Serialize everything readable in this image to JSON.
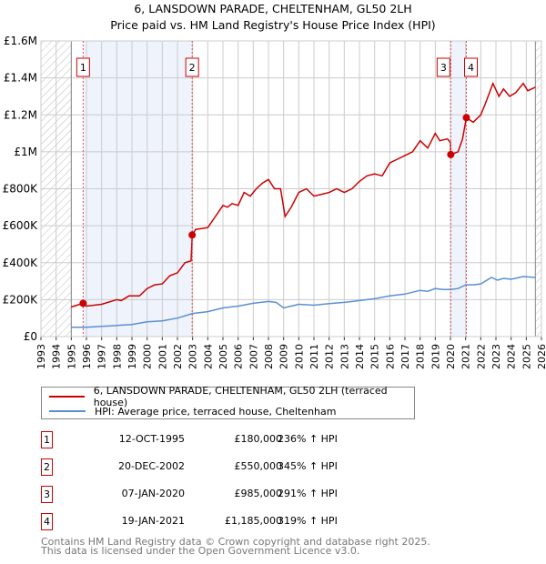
{
  "title": "6, LANSDOWN PARADE, CHELTENHAM, GL50 2LH",
  "subtitle": "Price paid vs. HM Land Registry's House Price Index (HPI)",
  "legend": {
    "property": "6, LANSDOWN PARADE, CHELTENHAM, GL50 2LH (terraced house)",
    "hpi": "HPI: Average price, terraced house, Cheltenham"
  },
  "transactions": [
    {
      "num": "1",
      "date": "12-OCT-1995",
      "price": "£180,000",
      "pct": "236% ↑ HPI"
    },
    {
      "num": "2",
      "date": "20-DEC-2002",
      "price": "£550,000",
      "pct": "345% ↑ HPI"
    },
    {
      "num": "3",
      "date": "07-JAN-2020",
      "price": "£985,000",
      "pct": "291% ↑ HPI"
    },
    {
      "num": "4",
      "date": "19-JAN-2021",
      "price": "£1,185,000",
      "pct": "319% ↑ HPI"
    }
  ],
  "footer": {
    "line1": "Contains HM Land Registry data © Crown copyright and database right 2025.",
    "line2": "This data is licensed under the Open Government Licence v3.0."
  },
  "colors": {
    "property": "#cc0000",
    "hpi": "#5b8fd4",
    "shade": "#eef3fc",
    "grid": "#cccccc"
  },
  "chart_data": {
    "type": "line",
    "xlim": [
      1993,
      2026
    ],
    "ylim": [
      0,
      1600000
    ],
    "yticks": [
      0,
      200000,
      400000,
      600000,
      800000,
      1000000,
      1200000,
      1400000,
      1600000
    ],
    "ytick_labels": [
      "£0",
      "£200K",
      "£400K",
      "£600K",
      "£800K",
      "£1M",
      "£1.2M",
      "£1.4M",
      "£1.6M"
    ],
    "xticks": [
      "1993",
      "1994",
      "1995",
      "1996",
      "1997",
      "1998",
      "1999",
      "2000",
      "2001",
      "2002",
      "2003",
      "2004",
      "2005",
      "2006",
      "2007",
      "2008",
      "2009",
      "2010",
      "2011",
      "2012",
      "2013",
      "2014",
      "2015",
      "2016",
      "2017",
      "2018",
      "2019",
      "2020",
      "2021",
      "2022",
      "2023",
      "2024",
      "2025",
      "2026"
    ],
    "hatched": [
      [
        1993,
        1995
      ],
      [
        2025.6,
        2026
      ]
    ],
    "shaded": [
      [
        1995.78,
        2002.97
      ],
      [
        2020.02,
        2021.05
      ]
    ],
    "sales": [
      {
        "label": "1",
        "x": 1995.78,
        "y": 180000
      },
      {
        "label": "2",
        "x": 2002.97,
        "y": 550000
      },
      {
        "label": "3",
        "x": 2020.02,
        "y": 985000
      },
      {
        "label": "4",
        "x": 2021.05,
        "y": 1185000
      }
    ],
    "series": [
      {
        "name": "property",
        "x": [
          1995.0,
          1995.78,
          1996.0,
          1997.0,
          1998.0,
          1998.3,
          1998.8,
          1999.5,
          2000.0,
          2000.5,
          2001.0,
          2001.5,
          2002.0,
          2002.5,
          2002.9,
          2002.97,
          2003.2,
          2004.0,
          2004.5,
          2005.0,
          2005.3,
          2005.6,
          2006.0,
          2006.4,
          2006.8,
          2007.2,
          2007.6,
          2008.0,
          2008.4,
          2008.8,
          2009.1,
          2009.5,
          2010.0,
          2010.5,
          2011.0,
          2011.5,
          2012.0,
          2012.5,
          2013.0,
          2013.5,
          2014.0,
          2014.5,
          2015.0,
          2015.5,
          2016.0,
          2016.5,
          2017.0,
          2017.5,
          2018.0,
          2018.5,
          2019.0,
          2019.3,
          2019.8,
          2020.0,
          2020.02,
          2020.5,
          2020.8,
          2021.05,
          2021.5,
          2022.0,
          2022.3,
          2022.8,
          2023.2,
          2023.5,
          2023.9,
          2024.3,
          2024.8,
          2025.1,
          2025.6
        ],
        "y": [
          160000,
          180000,
          165000,
          175000,
          200000,
          195000,
          220000,
          220000,
          260000,
          280000,
          285000,
          330000,
          345000,
          400000,
          410000,
          550000,
          580000,
          590000,
          650000,
          710000,
          700000,
          720000,
          710000,
          780000,
          760000,
          800000,
          830000,
          850000,
          800000,
          800000,
          650000,
          700000,
          780000,
          800000,
          760000,
          770000,
          780000,
          800000,
          780000,
          800000,
          840000,
          870000,
          880000,
          870000,
          940000,
          960000,
          980000,
          1000000,
          1060000,
          1020000,
          1100000,
          1060000,
          1070000,
          1050000,
          985000,
          1000000,
          1070000,
          1185000,
          1160000,
          1200000,
          1260000,
          1370000,
          1300000,
          1340000,
          1300000,
          1320000,
          1370000,
          1330000,
          1350000
        ]
      },
      {
        "name": "hpi",
        "x": [
          1995,
          1996,
          1997,
          1998,
          1999,
          2000,
          2001,
          2002,
          2003,
          2004,
          2005,
          2006,
          2007,
          2008,
          2008.5,
          2009.0,
          2009.5,
          2010,
          2011,
          2012,
          2013,
          2014,
          2015,
          2016,
          2017,
          2018,
          2018.5,
          2019,
          2019.5,
          2020,
          2020.5,
          2021,
          2021.5,
          2022,
          2022.7,
          2023.1,
          2023.5,
          2024,
          2024.8,
          2025.6
        ],
        "y": [
          50000,
          50000,
          55000,
          60000,
          65000,
          80000,
          85000,
          100000,
          125000,
          135000,
          155000,
          165000,
          180000,
          190000,
          185000,
          155000,
          165000,
          175000,
          170000,
          178000,
          185000,
          195000,
          205000,
          220000,
          230000,
          250000,
          245000,
          260000,
          255000,
          255000,
          260000,
          280000,
          280000,
          285000,
          320000,
          305000,
          315000,
          310000,
          325000,
          320000
        ]
      }
    ]
  }
}
